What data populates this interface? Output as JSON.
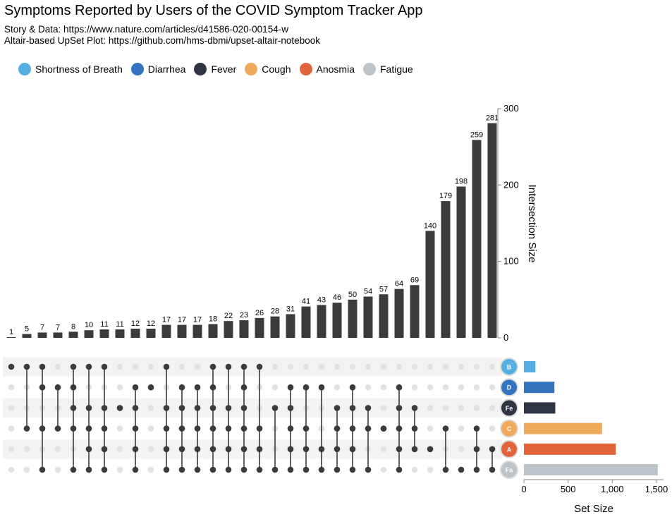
{
  "header": {
    "title": "Symptoms Reported by Users of the COVID Symptom Tracker App",
    "subtitle_1": "Story & Data: https://www.nature.com/articles/d41586-020-00154-w",
    "subtitle_2": "Altair-based UpSet Plot: https://github.com/hms-dbmi/upset-altair-notebook"
  },
  "chart_data": {
    "type": "upset",
    "title": "Symptoms Reported by Users of the COVID Symptom Tracker App",
    "sets": [
      {
        "name": "Shortness of Breath",
        "abbr": "B",
        "color": "#57aee2",
        "size": 130
      },
      {
        "name": "Diarrhea",
        "abbr": "D",
        "color": "#3374bf",
        "size": 345
      },
      {
        "name": "Fever",
        "abbr": "Fe",
        "color": "#2f3545",
        "size": 355
      },
      {
        "name": "Cough",
        "abbr": "C",
        "color": "#f0aa5c",
        "size": 885
      },
      {
        "name": "Anosmia",
        "abbr": "A",
        "color": "#e1643a",
        "size": 1040
      },
      {
        "name": "Fatigue",
        "abbr": "Fa",
        "color": "#bcc4c9",
        "size": 1515
      }
    ],
    "intersections": [
      {
        "value": 1,
        "sets": [
          "Shortness of Breath"
        ]
      },
      {
        "value": 5,
        "sets": [
          "Shortness of Breath",
          "Cough"
        ]
      },
      {
        "value": 7,
        "sets": [
          "Shortness of Breath",
          "Diarrhea",
          "Cough",
          "Fatigue"
        ]
      },
      {
        "value": 7,
        "sets": [
          "Diarrhea",
          "Cough"
        ]
      },
      {
        "value": 8,
        "sets": [
          "Shortness of Breath",
          "Diarrhea",
          "Fever",
          "Cough",
          "Fatigue"
        ]
      },
      {
        "value": 10,
        "sets": [
          "Shortness of Breath",
          "Fever",
          "Cough",
          "Anosmia",
          "Fatigue"
        ]
      },
      {
        "value": 11,
        "sets": [
          "Shortness of Breath",
          "Fever",
          "Cough",
          "Anosmia",
          "Fatigue"
        ]
      },
      {
        "value": 11,
        "sets": [
          "Fever"
        ]
      },
      {
        "value": 12,
        "sets": [
          "Diarrhea",
          "Fever",
          "Cough",
          "Anosmia",
          "Fatigue"
        ]
      },
      {
        "value": 12,
        "sets": [
          "Diarrhea"
        ]
      },
      {
        "value": 17,
        "sets": [
          "Shortness of Breath",
          "Fever",
          "Cough",
          "Anosmia",
          "Fatigue"
        ]
      },
      {
        "value": 17,
        "sets": [
          "Diarrhea",
          "Fever",
          "Cough",
          "Anosmia",
          "Fatigue"
        ]
      },
      {
        "value": 17,
        "sets": [
          "Diarrhea",
          "Fever",
          "Cough",
          "Anosmia",
          "Fatigue"
        ]
      },
      {
        "value": 18,
        "sets": [
          "Shortness of Breath",
          "Diarrhea",
          "Fever",
          "Cough",
          "Anosmia",
          "Fatigue"
        ]
      },
      {
        "value": 22,
        "sets": [
          "Shortness of Breath",
          "Fever",
          "Cough",
          "Anosmia",
          "Fatigue"
        ]
      },
      {
        "value": 23,
        "sets": [
          "Shortness of Breath",
          "Diarrhea",
          "Fever",
          "Cough",
          "Anosmia",
          "Fatigue"
        ]
      },
      {
        "value": 26,
        "sets": [
          "Shortness of Breath",
          "Cough",
          "Anosmia",
          "Fatigue"
        ]
      },
      {
        "value": 28,
        "sets": [
          "Fever",
          "Fatigue"
        ]
      },
      {
        "value": 31,
        "sets": [
          "Diarrhea",
          "Fever",
          "Cough",
          "Anosmia",
          "Fatigue"
        ]
      },
      {
        "value": 41,
        "sets": [
          "Diarrhea",
          "Cough",
          "Anosmia",
          "Fatigue"
        ]
      },
      {
        "value": 43,
        "sets": [
          "Diarrhea",
          "Anosmia",
          "Fatigue"
        ]
      },
      {
        "value": 46,
        "sets": [
          "Fever",
          "Cough",
          "Anosmia",
          "Fatigue"
        ]
      },
      {
        "value": 50,
        "sets": [
          "Diarrhea",
          "Fever",
          "Cough",
          "Anosmia",
          "Fatigue"
        ]
      },
      {
        "value": 54,
        "sets": [
          "Fever",
          "Cough",
          "Fatigue"
        ]
      },
      {
        "value": 57,
        "sets": [
          "Cough"
        ]
      },
      {
        "value": 64,
        "sets": [
          "Diarrhea",
          "Fever",
          "Cough",
          "Anosmia",
          "Fatigue"
        ]
      },
      {
        "value": 69,
        "sets": [
          "Fever",
          "Cough",
          "Anosmia"
        ]
      },
      {
        "value": 140,
        "sets": [
          "Anosmia"
        ]
      },
      {
        "value": 179,
        "sets": [
          "Cough",
          "Fatigue"
        ]
      },
      {
        "value": 198,
        "sets": [
          "Fatigue"
        ]
      },
      {
        "value": 259,
        "sets": [
          "Cough",
          "Anosmia",
          "Fatigue"
        ]
      },
      {
        "value": 281,
        "sets": [
          "Anosmia",
          "Fatigue"
        ]
      }
    ],
    "ylabel": "Intersection Size",
    "ylim": [
      0,
      300
    ],
    "yticks": [
      0,
      100,
      200,
      300
    ],
    "xlabel": "Set Size",
    "xlim": [
      0,
      1500
    ],
    "xticks": [
      "0",
      "500",
      "1,000",
      "1,500"
    ],
    "bar_color": "#3b3b3b",
    "legend_placement": "top-left"
  }
}
